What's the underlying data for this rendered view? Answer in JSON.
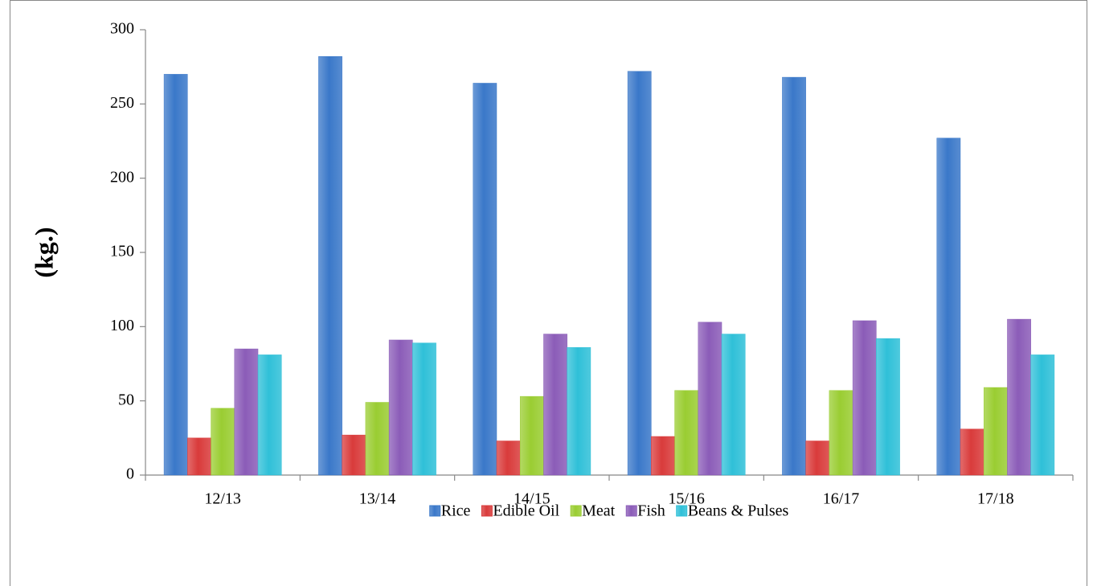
{
  "chart_data": {
    "type": "bar",
    "y_label": "(kg.)",
    "categories": [
      "12/13",
      "13/14",
      "14/15",
      "15/16",
      "16/17",
      "17/18"
    ],
    "series": [
      {
        "name": "Rice",
        "color": "#3a78c9",
        "values": [
          270,
          282,
          264,
          272,
          268,
          227
        ]
      },
      {
        "name": "Edible Oil",
        "color": "#d93b3b",
        "values": [
          25,
          27,
          23,
          26,
          23,
          31
        ]
      },
      {
        "name": "Meat",
        "color": "#9acd32",
        "values": [
          45,
          49,
          53,
          57,
          57,
          59
        ]
      },
      {
        "name": "Fish",
        "color": "#8b5cb8",
        "values": [
          85,
          91,
          95,
          103,
          104,
          105
        ]
      },
      {
        "name": "Beans & Pulses",
        "color": "#2fc0d8",
        "values": [
          81,
          89,
          86,
          95,
          92,
          81
        ]
      }
    ],
    "ylim": [
      0,
      300
    ],
    "yticks": [
      0,
      50,
      100,
      150,
      200,
      250,
      300
    ],
    "grid": false,
    "legend": "bottom"
  }
}
